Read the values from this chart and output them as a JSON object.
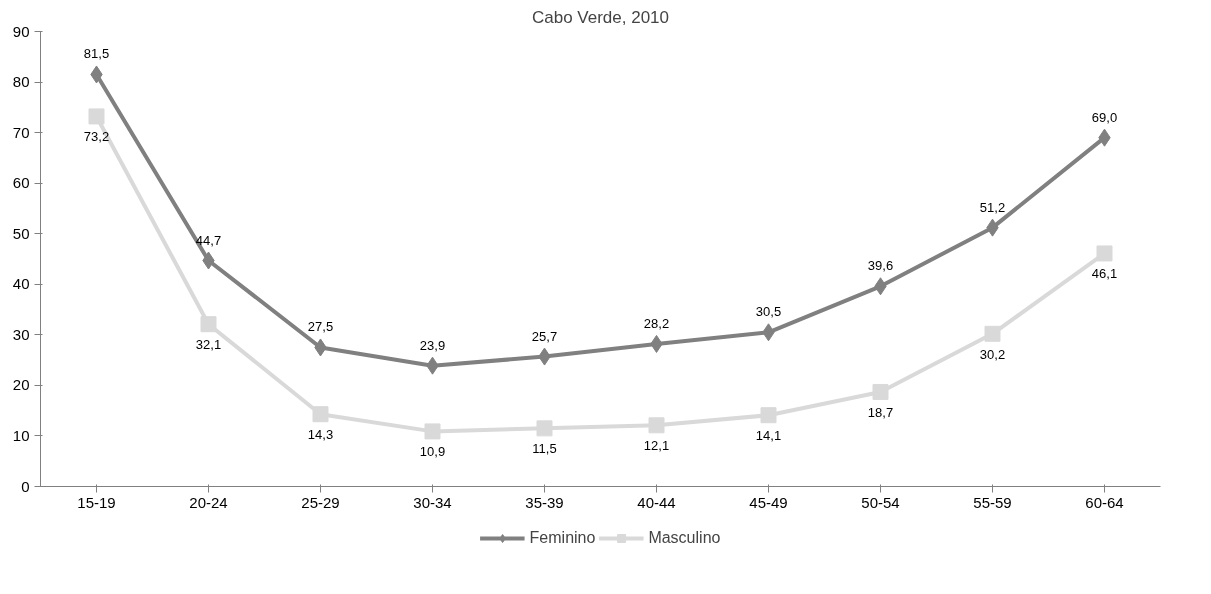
{
  "chart_data": {
    "type": "line",
    "title": "Cabo Verde, 2010",
    "categories": [
      "15-19",
      "20-24",
      "25-29",
      "30-34",
      "35-39",
      "40-44",
      "45-49",
      "50-54",
      "55-59",
      "60-64"
    ],
    "series": [
      {
        "name": "Feminino",
        "color": "#808080",
        "marker": "diamond",
        "values": [
          81.5,
          44.7,
          27.5,
          23.9,
          25.7,
          28.2,
          30.5,
          39.6,
          51.2,
          69.0
        ],
        "value_labels": [
          "81,5",
          "44,7",
          "27,5",
          "23,9",
          "25,7",
          "28,2",
          "30,5",
          "39,6",
          "51,2",
          "69,0"
        ]
      },
      {
        "name": "Masculino",
        "color": "#d9d9d9",
        "marker": "square",
        "values": [
          73.2,
          32.1,
          14.3,
          10.9,
          11.5,
          12.1,
          14.1,
          18.7,
          30.2,
          46.1
        ],
        "value_labels": [
          "73,2",
          "32,1",
          "14,3",
          "10,9",
          "11,5",
          "12,1",
          "14,1",
          "18,7",
          "30,2",
          "46,1"
        ]
      }
    ],
    "ylim": [
      0,
      90
    ],
    "yticks": [
      0,
      10,
      20,
      30,
      40,
      50,
      60,
      70,
      80,
      90
    ],
    "grid": false,
    "legend": "bottom",
    "line_style": "solid"
  }
}
